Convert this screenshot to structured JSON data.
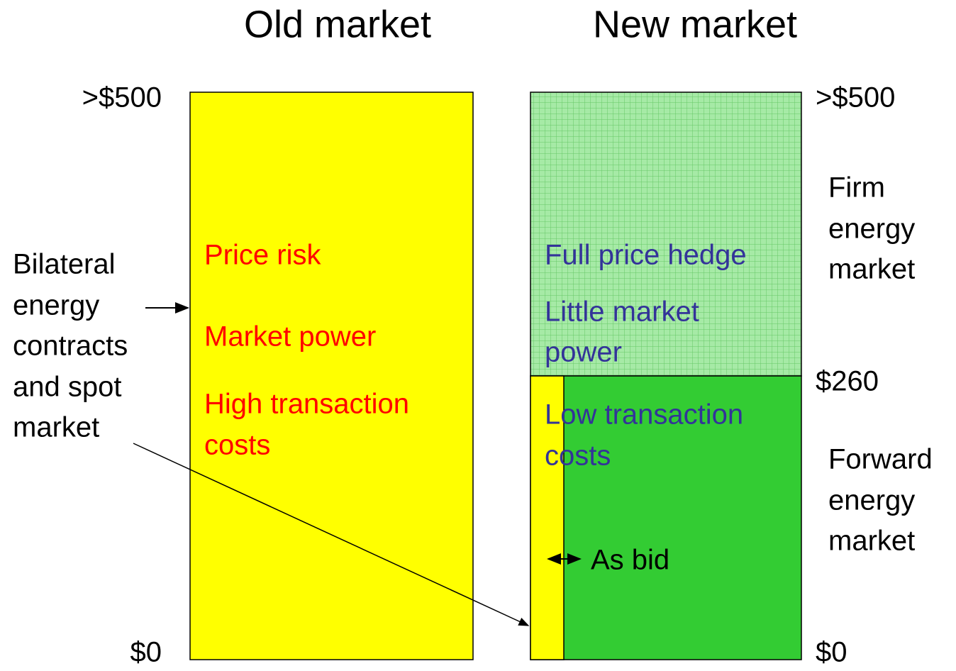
{
  "titles": {
    "old": "Old market",
    "new": "New market"
  },
  "old_scale": {
    "top": ">$500",
    "bottom": "$0"
  },
  "new_scale": {
    "top": ">$500",
    "middle": "$260",
    "bottom": "$0"
  },
  "side_labels": {
    "bilateral": [
      "Bilateral",
      "energy",
      "contracts",
      "and spot",
      "market"
    ],
    "firm": [
      "Firm",
      "energy",
      "market"
    ],
    "forward": [
      "Forward",
      "energy",
      "market"
    ]
  },
  "old_box": [
    "Price risk",
    "Market power",
    "High transaction",
    "costs"
  ],
  "new_box": [
    "Full price hedge",
    "Little market",
    "power",
    "Low transaction",
    "costs"
  ],
  "as_bid": "As bid"
}
